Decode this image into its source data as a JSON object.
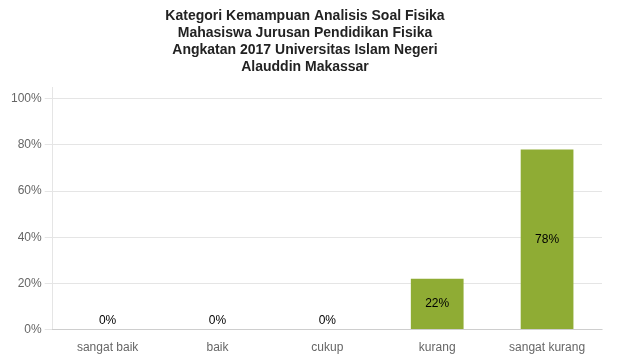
{
  "chart_data": {
    "type": "bar",
    "title": "Kategori Kemampuan Analisis Soal Fisika\nMahasiswa Jurusan Pendidikan Fisika\nAngkatan 2017 Universitas Islam Negeri\nAlauddin Makassar",
    "categories": [
      "sangat baik",
      "baik",
      "cukup",
      "kurang",
      "sangat kurang"
    ],
    "values": [
      0,
      0,
      0,
      22,
      78
    ],
    "value_labels": [
      "0%",
      "0%",
      "0%",
      "22%",
      "78%"
    ],
    "color": "#8fac34",
    "ylim": [
      0,
      105
    ],
    "yticks": [
      {
        "value": 0,
        "label": "0%"
      },
      {
        "value": 20,
        "label": "20%"
      },
      {
        "value": 40,
        "label": "40%"
      },
      {
        "value": 60,
        "label": "60%"
      },
      {
        "value": 80,
        "label": "80%"
      },
      {
        "value": 100,
        "label": "100%"
      }
    ],
    "grid": true,
    "data_labels": true
  }
}
